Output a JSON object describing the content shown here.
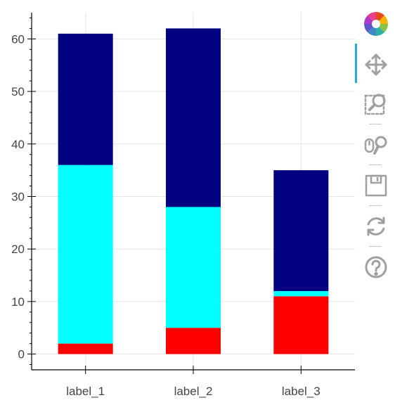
{
  "chart_data": {
    "type": "bar",
    "stacked": true,
    "categories": [
      "label_1",
      "label_2",
      "label_3"
    ],
    "series": [
      {
        "color": "#ff0000",
        "values": [
          2,
          5,
          11
        ]
      },
      {
        "color": "#00ffff",
        "values": [
          34,
          23,
          1
        ]
      },
      {
        "color": "#000080",
        "values": [
          25,
          34,
          23
        ]
      }
    ],
    "ylim": [
      -3,
      65
    ],
    "yticks": [
      0,
      10,
      20,
      30,
      40,
      50,
      60
    ],
    "grid": true,
    "title": "",
    "xlabel": "",
    "ylabel": ""
  },
  "toolbar": {
    "logo_icon": "bokeh-logo-icon",
    "tools": [
      {
        "name": "pan",
        "icon": "move-arrows-icon",
        "active": true
      },
      {
        "name": "box-zoom",
        "icon": "box-zoom-icon",
        "active": false
      },
      {
        "name": "wheel-zoom",
        "icon": "wheel-zoom-icon",
        "active": false
      },
      {
        "name": "save",
        "icon": "floppy-disk-icon",
        "active": false
      },
      {
        "name": "reset",
        "icon": "reset-arrows-icon",
        "active": false
      },
      {
        "name": "help",
        "icon": "question-mark-icon",
        "active": false
      }
    ],
    "icon_color": "#a0a0a0",
    "active_color": "#26aae1"
  }
}
